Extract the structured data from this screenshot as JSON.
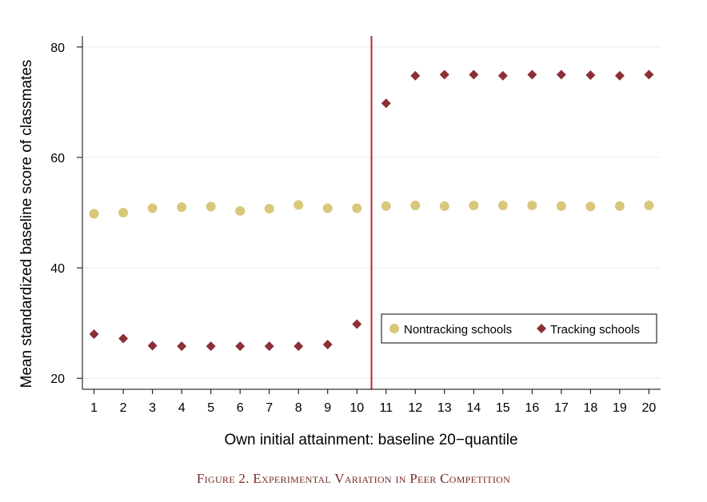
{
  "chart_data": {
    "type": "scatter",
    "title": "",
    "xlabel": "Own initial attainment:  baseline 20−quantile",
    "ylabel": "Mean standardized baseline score of classmates",
    "x": [
      1,
      2,
      3,
      4,
      5,
      6,
      7,
      8,
      9,
      10,
      11,
      12,
      13,
      14,
      15,
      16,
      17,
      18,
      19,
      20
    ],
    "x_tick_labels": [
      "1",
      "2",
      "3",
      "4",
      "5",
      "6",
      "7",
      "8",
      "9",
      "10",
      "11",
      "12",
      "13",
      "14",
      "15",
      "16",
      "17",
      "18",
      "19",
      "20"
    ],
    "y_ticks": [
      20,
      40,
      60,
      80
    ],
    "y_tick_labels": [
      "20",
      "40",
      "60",
      "80"
    ],
    "xlim": [
      0.6,
      20.4
    ],
    "ylim": [
      18.0,
      82.0
    ],
    "grid": "horizontal",
    "reference_line_x": 10.5,
    "series": [
      {
        "name": "Nontracking schools",
        "marker": "circle",
        "color": "#d9c77c",
        "values": [
          49.8,
          50.0,
          50.8,
          51.0,
          51.1,
          50.3,
          50.7,
          51.4,
          50.8,
          50.8,
          51.2,
          51.3,
          51.2,
          51.3,
          51.3,
          51.3,
          51.2,
          51.1,
          51.2,
          51.3
        ]
      },
      {
        "name": "Tracking schools",
        "marker": "diamond",
        "color": "#8b3037",
        "values": [
          28.0,
          27.2,
          25.9,
          25.8,
          25.8,
          25.8,
          25.8,
          25.8,
          26.1,
          29.8,
          69.8,
          74.8,
          75.0,
          75.0,
          74.8,
          75.0,
          75.0,
          74.9,
          74.8,
          75.0
        ]
      }
    ],
    "legend_position": "lower-right"
  },
  "caption": "Figure 2. Experimental Variation in Peer Competition",
  "colors": {
    "reference_line": "#c0282f",
    "grid": "#ececec",
    "axis": "#000000"
  }
}
